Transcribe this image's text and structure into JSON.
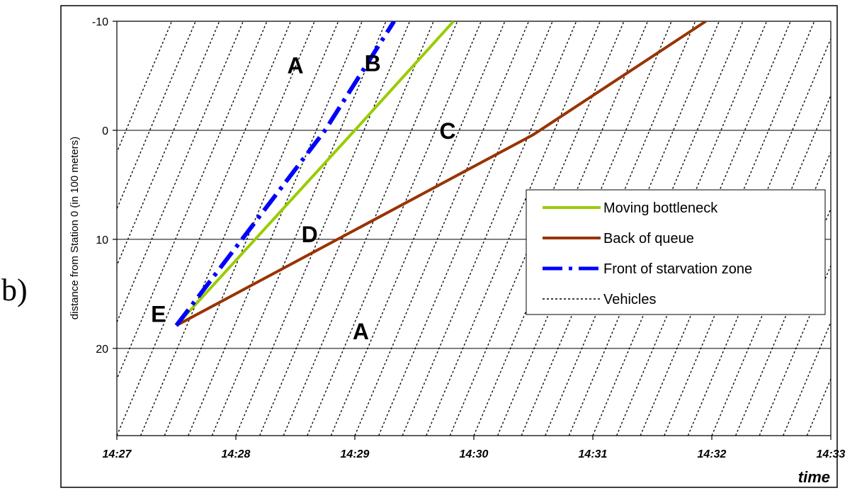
{
  "panel_label": "b)",
  "chart_data": {
    "type": "line",
    "title": "",
    "xlabel": "time",
    "ylabel": "distance from Station 0 (in 100 meters)",
    "x_unit": "minutes",
    "x_ticks": [
      "14:27",
      "14:28",
      "14:29",
      "14:30",
      "14:31",
      "14:32",
      "14:33"
    ],
    "x_tick_values": [
      0,
      1,
      2,
      3,
      4,
      5,
      6
    ],
    "xlim": [
      0,
      6
    ],
    "y_ticks": [
      "-10",
      "0",
      "10",
      "20"
    ],
    "y_tick_values": [
      -10,
      0,
      10,
      20
    ],
    "ylim": [
      -10,
      28
    ],
    "y_inverted": true,
    "grid": "horizontal",
    "legend_position": "right",
    "series": [
      {
        "name": "Moving bottleneck",
        "color": "#99CC00",
        "style": "solid",
        "points": [
          [
            0.5,
            17.9
          ],
          [
            2.0,
            0.0
          ],
          [
            2.83,
            -10.0
          ]
        ]
      },
      {
        "name": "Back of queue",
        "color": "#993300",
        "style": "solid",
        "points": [
          [
            0.5,
            17.9
          ],
          [
            3.5,
            0.4
          ],
          [
            4.95,
            -10.0
          ]
        ]
      },
      {
        "name": "Front of starvation zone",
        "color": "#0000FF",
        "style": "dashdot",
        "points": [
          [
            0.5,
            17.9
          ],
          [
            1.75,
            0.0
          ],
          [
            2.33,
            -10.0
          ]
        ]
      },
      {
        "name": "Vehicles",
        "color": "#000000",
        "style": "dotted",
        "slope_per_minute": -26,
        "start_times": [
          -1.0,
          -0.8,
          -0.6,
          -0.4,
          -0.2,
          0.0,
          0.2,
          0.4,
          0.6,
          0.8,
          1.0,
          1.2,
          1.4,
          1.6,
          1.8,
          2.0,
          2.2,
          2.4,
          2.6,
          2.8,
          3.0,
          3.2,
          3.4,
          3.6,
          3.8,
          4.0,
          4.2,
          4.4,
          4.6,
          4.8,
          5.0,
          5.2,
          5.4,
          5.6,
          5.8,
          6.0
        ]
      }
    ],
    "annotations": [
      {
        "text": "A",
        "x": 1.5,
        "y": -6.0
      },
      {
        "text": "B",
        "x": 2.15,
        "y": -6.2
      },
      {
        "text": "C",
        "x": 2.78,
        "y": 0.0
      },
      {
        "text": "D",
        "x": 1.62,
        "y": 9.5
      },
      {
        "text": "E",
        "x": 0.35,
        "y": 16.8
      },
      {
        "text": "A",
        "x": 2.05,
        "y": 18.4
      }
    ]
  }
}
